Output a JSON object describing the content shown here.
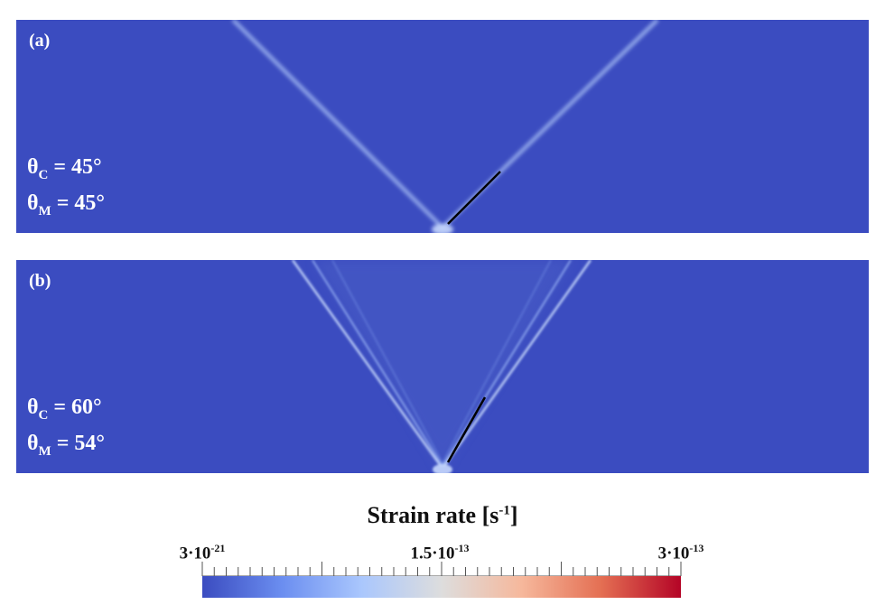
{
  "panels": [
    {
      "label": "(a)",
      "theta_c_symbol": "θ",
      "theta_c_sub": "C",
      "theta_c_value": " = 45°",
      "theta_m_symbol": "θ",
      "theta_m_sub": "M",
      "theta_m_value": " = 45°"
    },
    {
      "label": "(b)",
      "theta_c_symbol": "θ",
      "theta_c_sub": "C",
      "theta_c_value": " = 60°",
      "theta_m_symbol": "θ",
      "theta_m_sub": "M",
      "theta_m_value": " = 54°"
    }
  ],
  "colorbar": {
    "title_main": "Strain rate [s",
    "title_sup": "-1",
    "title_end": "]",
    "min_base": "3·10",
    "min_exp": "-21",
    "mid_base": "1.5·10",
    "mid_exp": "-13",
    "max_base": "3·10",
    "max_exp": "-13",
    "colors": [
      "#3b4cc0",
      "#6b8ef0",
      "#aac7fd",
      "#dddddd",
      "#f6b89c",
      "#e46f53",
      "#b40426"
    ]
  },
  "colors": {
    "background_field": "#3b4cc0",
    "wave_front": "#aac7fd",
    "measured_line": "#000000"
  }
}
